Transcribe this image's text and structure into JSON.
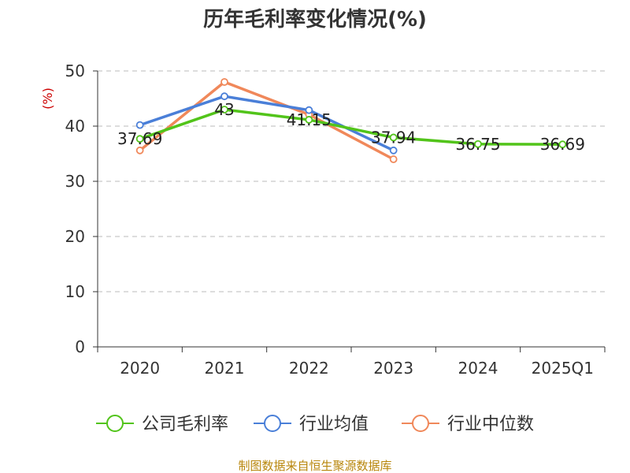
{
  "chart_data": {
    "type": "line",
    "title": "历年毛利率变化情况(%)",
    "ylabel": "(%)",
    "categories": [
      "2020",
      "2021",
      "2022",
      "2023",
      "2024",
      "2025Q1"
    ],
    "ylim": [
      0,
      50
    ],
    "yticks": [
      0,
      10,
      20,
      30,
      40,
      50
    ],
    "grid": true,
    "legend_position": "bottom",
    "series": [
      {
        "name": "公司毛利率",
        "color": "#52c41a",
        "values": [
          37.69,
          43,
          41.15,
          37.94,
          36.75,
          36.69
        ],
        "labels": [
          "37.69",
          "43",
          "41.15",
          "37.94",
          "36.75",
          "36.69"
        ]
      },
      {
        "name": "行业均值",
        "color": "#4a7fd8",
        "values": [
          40.2,
          45.4,
          42.9,
          35.6,
          null,
          null
        ]
      },
      {
        "name": "行业中位数",
        "color": "#f0885a",
        "values": [
          35.6,
          48.0,
          42.1,
          34.0,
          null,
          null
        ]
      }
    ],
    "source": "制图数据来自恒生聚源数据库"
  }
}
